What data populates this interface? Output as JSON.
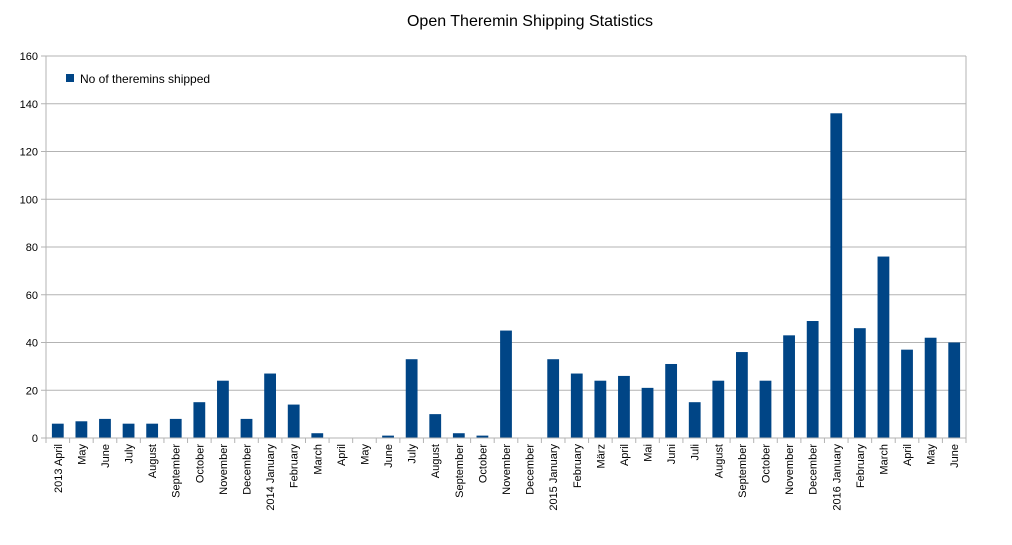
{
  "chart_data": {
    "type": "bar",
    "title": "Open Theremin Shipping Statistics",
    "xlabel": "",
    "ylabel": "",
    "ylim": [
      0,
      160
    ],
    "yticks": [
      0,
      20,
      40,
      60,
      80,
      100,
      120,
      140,
      160
    ],
    "grid": true,
    "legend_position": "top-left",
    "color": "#004586",
    "categories": [
      "2013 April",
      "May",
      "June",
      "July",
      "August",
      "September",
      "October",
      "November",
      "December",
      "2014 January",
      "February",
      "March",
      "April",
      "May",
      "June",
      "July",
      "August",
      "September",
      "October",
      "November",
      "December",
      "2015 January",
      "February",
      "März",
      "April",
      "Mai",
      "Juni",
      "Juli",
      "August",
      "September",
      "October",
      "November",
      "December",
      "2016 January",
      "February",
      "March",
      "April",
      "May",
      "June"
    ],
    "series": [
      {
        "name": "No of theremins shipped",
        "values": [
          6,
          7,
          8,
          6,
          6,
          8,
          15,
          24,
          8,
          27,
          14,
          2,
          0,
          0,
          1,
          33,
          10,
          2,
          1,
          45,
          0,
          33,
          27,
          24,
          26,
          21,
          31,
          15,
          24,
          36,
          24,
          43,
          49,
          136,
          46,
          76,
          37,
          42,
          40
        ]
      }
    ]
  }
}
